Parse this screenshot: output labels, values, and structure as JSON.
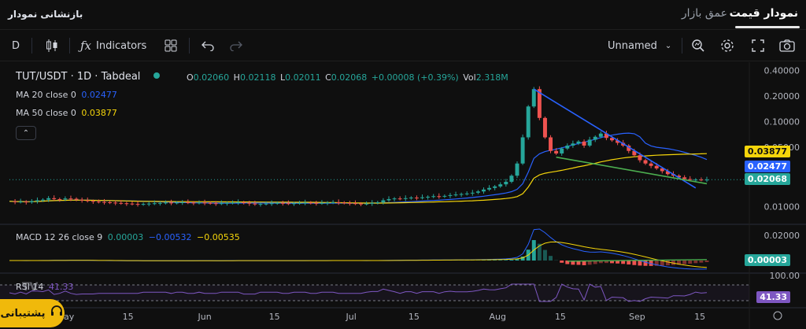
{
  "header": {
    "title": "بازنشانی نمودار",
    "tabs": [
      {
        "label": "نمودار قیمت",
        "active": true
      },
      {
        "label": "عمق بازار",
        "active": false
      }
    ]
  },
  "toolbar": {
    "interval": "D",
    "indicators_label": "Indicators",
    "layout_name": "Unnamed",
    "icons": [
      "candles-icon",
      "indicators-fx-icon",
      "layouts-grid-icon",
      "undo-icon",
      "redo-icon",
      "chevron-down-icon",
      "quick-search-icon",
      "settings-gear-icon",
      "fullscreen-icon",
      "camera-icon"
    ]
  },
  "legend": {
    "symbol": "TUT/USDT · 1D · Tabdeal",
    "o_label": "O",
    "o": "0.02060",
    "h_label": "H",
    "h": "0.02118",
    "l_label": "L",
    "l": "0.02011",
    "c_label": "C",
    "c": "0.02068",
    "change": "+0.00008 (+0.39%)",
    "vol_label": "Vol",
    "vol": "2.318M",
    "ma20_label": "MA 20 close 0",
    "ma20_value": "0.02477",
    "ma50_label": "MA 50 close 0",
    "ma50_value": "0.03877",
    "macd_label": "MACD 12 26 close 9",
    "macd_v1": "0.00003",
    "macd_v2": "−0.00532",
    "macd_v3": "−0.00535",
    "rsi_label": "RSI 14",
    "rsi_value": "41.33"
  },
  "colors": {
    "up": "#26a69a",
    "down": "#ef5350",
    "ma20": "#2962ff",
    "ma50": "#f5d50a",
    "trend_blue": "#2962ff",
    "trend_green": "#4caf50",
    "rsi": "#7e57c2",
    "accent": "#f0b90b"
  },
  "price_scale": {
    "ticks": [
      "0.40000",
      "0.20000",
      "0.10000",
      "0.05000",
      "0.01000"
    ],
    "labels": {
      "ma50": "0.03877",
      "ma20": "0.02477",
      "last": "0.02068"
    }
  },
  "macd_scale": {
    "ticks": [
      "0.02000"
    ],
    "label": "0.00003"
  },
  "rsi_scale": {
    "ticks": [
      "100.00"
    ],
    "label": "41.33"
  },
  "time_axis": [
    "May",
    "15",
    "Jun",
    "15",
    "Jul",
    "15",
    "Aug",
    "15",
    "Sep",
    "15"
  ],
  "support_label": "پشتیبانی",
  "chart_data": {
    "type": "candlestick",
    "symbol": "TUT/USDT",
    "interval": "1D",
    "y_scale": "log",
    "ylim": [
      0.007,
      0.42
    ],
    "series": [
      {
        "name": "MA 20 close 0",
        "last": 0.02477
      },
      {
        "name": "MA 50 close 0",
        "last": 0.03877
      }
    ],
    "last_candle": {
      "open": 0.0206,
      "high": 0.02118,
      "low": 0.02011,
      "close": 0.02068,
      "volume": "2.318M"
    },
    "close_path": [
      0.0115,
      0.0113,
      0.0114,
      0.0112,
      0.0115,
      0.0118,
      0.012,
      0.0125,
      0.0122,
      0.0121,
      0.0124,
      0.0123,
      0.012,
      0.0118,
      0.0116,
      0.0114,
      0.0113,
      0.0112,
      0.0111,
      0.011,
      0.0109,
      0.0108,
      0.0107,
      0.0106,
      0.0107,
      0.0108,
      0.0109,
      0.011,
      0.0111,
      0.011,
      0.0111,
      0.0112,
      0.0111,
      0.011,
      0.0111,
      0.011,
      0.0109,
      0.0108,
      0.0109,
      0.011,
      0.0111,
      0.0112,
      0.011,
      0.0108,
      0.0106,
      0.0107,
      0.0108,
      0.0109,
      0.011,
      0.0109,
      0.0108,
      0.0109,
      0.011,
      0.0111,
      0.011,
      0.0109,
      0.011,
      0.0111,
      0.0112,
      0.0111,
      0.011,
      0.0109,
      0.0108,
      0.0107,
      0.0108,
      0.011,
      0.0112,
      0.0118,
      0.0122,
      0.0124,
      0.0123,
      0.0125,
      0.0127,
      0.0126,
      0.0128,
      0.013,
      0.0132,
      0.0131,
      0.0133,
      0.0136,
      0.0138,
      0.014,
      0.0142,
      0.0145,
      0.015,
      0.0158,
      0.0165,
      0.0172,
      0.0182,
      0.0195,
      0.023,
      0.032,
      0.065,
      0.15,
      0.24,
      0.11,
      0.065,
      0.045,
      0.042,
      0.048,
      0.052,
      0.055,
      0.058,
      0.052,
      0.061,
      0.066,
      0.072,
      0.064,
      0.06,
      0.056,
      0.052,
      0.045,
      0.04,
      0.035,
      0.032,
      0.03,
      0.028,
      0.026,
      0.024,
      0.023,
      0.022,
      0.021,
      0.0205,
      0.0207,
      0.0206,
      0.02068
    ]
  }
}
